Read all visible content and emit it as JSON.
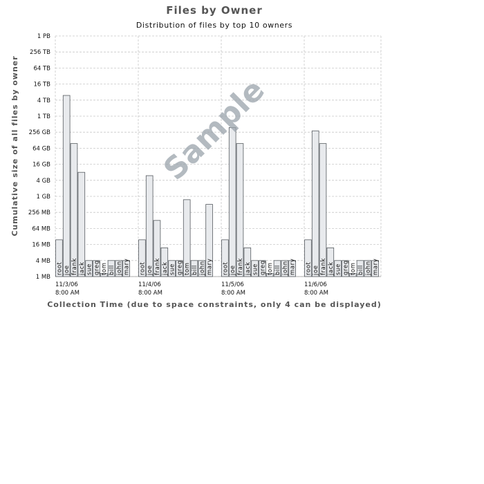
{
  "chart_data": {
    "type": "bar",
    "title": "Files by Owner",
    "subtitle": "Distribution of files by top 10 owners",
    "ylabel": "Cumulative size of all files by owner",
    "xlabel": "Collection Time (due to space constraints, only 4 can be displayed)",
    "y_scale": "log4",
    "y_ticks": [
      "1 MB",
      "4 MB",
      "16 MB",
      "64 MB",
      "256 MB",
      "1 GB",
      "4 GB",
      "16 GB",
      "64 GB",
      "256 GB",
      "1 TB",
      "4 TB",
      "16 TB",
      "64 TB",
      "256 TB",
      "1 PB"
    ],
    "ylim": [
      "1 MB",
      "1 PB"
    ],
    "grid": true,
    "owners": [
      "root",
      "joe",
      "frank",
      "jack",
      "sue",
      "greg",
      "tom",
      "bill",
      "john",
      "mary"
    ],
    "groups": [
      {
        "date": "11/3/06",
        "time": "8:00 AM",
        "values_mb": [
          24,
          6291456,
          98304,
          8192,
          4,
          4,
          1.3,
          4,
          4,
          4
        ]
      },
      {
        "date": "11/4/06",
        "time": "8:00 AM",
        "values_mb": [
          24,
          6144,
          128,
          12,
          4,
          4,
          768,
          4,
          4,
          512
        ]
      },
      {
        "date": "11/5/06",
        "time": "8:00 AM",
        "values_mb": [
          24,
          393216,
          98304,
          12,
          4,
          4,
          1.3,
          4,
          4,
          4
        ]
      },
      {
        "date": "11/6/06",
        "time": "8:00 AM",
        "values_mb": [
          24,
          294912,
          98304,
          12,
          4,
          4,
          1.3,
          4,
          4,
          4
        ]
      }
    ]
  },
  "watermark": "Sample",
  "colors": {
    "bar_fill": "#e8eaed",
    "bar_stroke": "#555a5f",
    "grid": "#c8c8c8",
    "axis": "#999999",
    "watermark": "#9aa3ab"
  }
}
